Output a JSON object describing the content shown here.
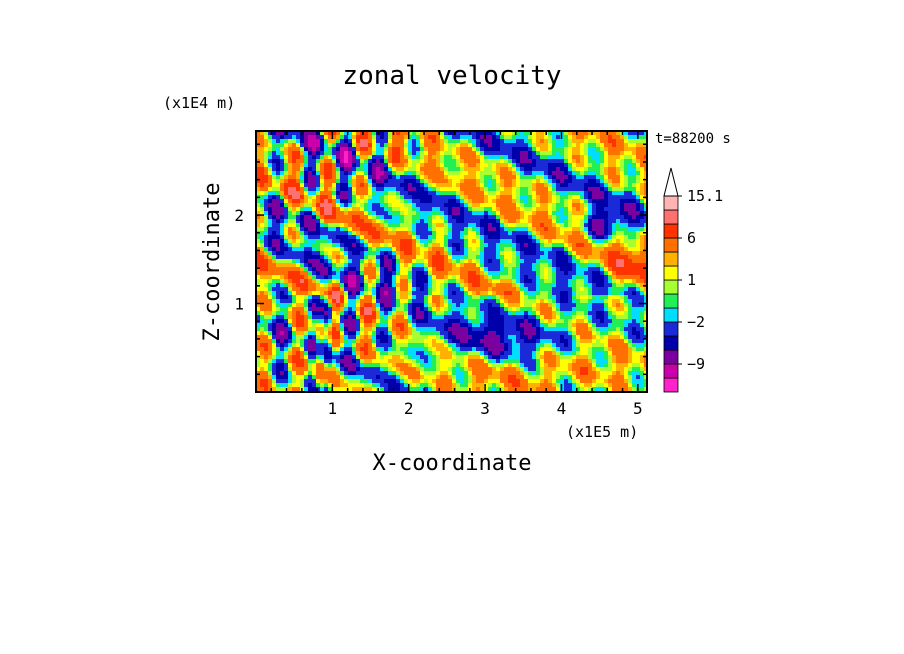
{
  "chart_data": {
    "type": "heatmap",
    "title": "zonal velocity",
    "xlabel": "X-coordinate",
    "ylabel": "Z-coordinate",
    "x_unit": "(x1E5 m)",
    "y_unit": "(x1E4 m)",
    "time_label": "t=88200 s",
    "xlim": [
      0,
      5.12
    ],
    "ylim": [
      0,
      2.95
    ],
    "x_ticks": [
      1,
      2,
      3,
      4,
      5
    ],
    "y_ticks": [
      1,
      2
    ],
    "colorbar": {
      "levels": [
        -15,
        -12,
        -9,
        -6,
        -4,
        -2,
        -1,
        0,
        1,
        2,
        3,
        6,
        9,
        12,
        15.1
      ],
      "labels": [
        "15.1",
        "6",
        "1",
        "−2",
        "−9"
      ],
      "colors": [
        "#ff22cc",
        "#cc00aa",
        "#7a00a0",
        "#0000aa",
        "#1a2ad8",
        "#00ddff",
        "#22ee55",
        "#a8ff30",
        "#ffff00",
        "#ffb000",
        "#ff7000",
        "#ff3300",
        "#ff7070",
        "#ffb3b3",
        "#ffffff"
      ],
      "extend_max": true
    },
    "grid": false
  }
}
